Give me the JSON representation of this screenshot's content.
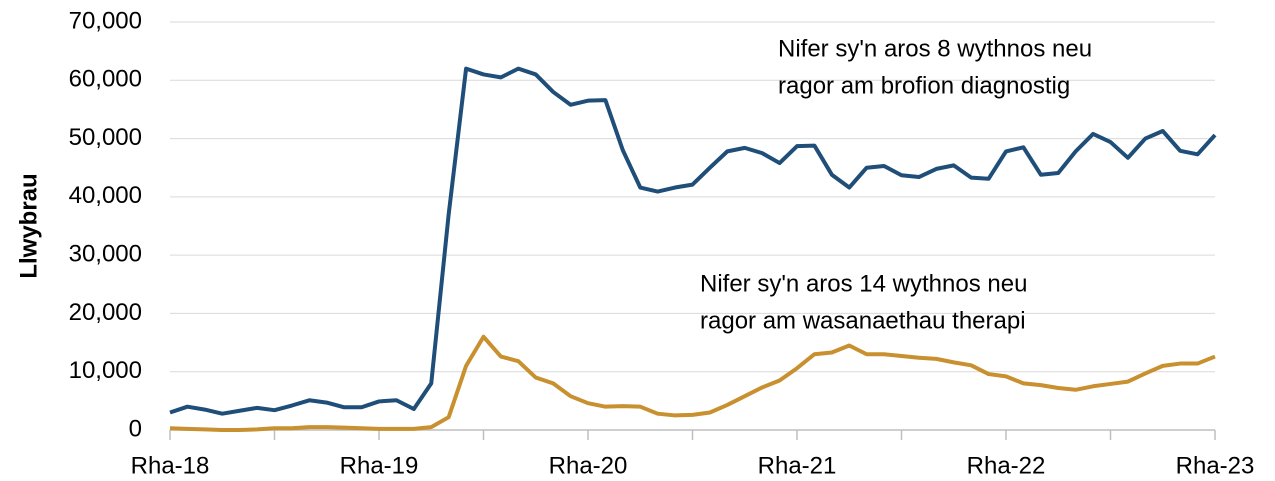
{
  "chart_data": {
    "type": "line",
    "y_label": "Llwybrau",
    "categories": [
      "Rha-18",
      null,
      null,
      null,
      null,
      null,
      null,
      null,
      null,
      null,
      null,
      null,
      "Rha-19",
      null,
      null,
      null,
      null,
      null,
      null,
      null,
      null,
      null,
      null,
      null,
      "Rha-20",
      null,
      null,
      null,
      null,
      null,
      null,
      null,
      null,
      null,
      null,
      null,
      "Rha-21",
      null,
      null,
      null,
      null,
      null,
      null,
      null,
      null,
      null,
      null,
      null,
      "Rha-22",
      null,
      null,
      null,
      null,
      null,
      null,
      null,
      null,
      null,
      null,
      null,
      "Rha-23"
    ],
    "series": [
      {
        "name": [
          "Nifer sy'n aros 8 wythnos neu",
          "ragor am brofion diagnostig"
        ],
        "color": "#1f4e79",
        "values": [
          3000,
          4000,
          3500,
          2800,
          3300,
          3800,
          3400,
          4200,
          5100,
          4700,
          3900,
          3900,
          4900,
          5100,
          3600,
          8000,
          37000,
          62000,
          61000,
          60500,
          62000,
          61000,
          58000,
          55800,
          56500,
          56600,
          48000,
          41600,
          40900,
          41600,
          42100,
          45000,
          47800,
          48400,
          47500,
          45800,
          48700,
          48800,
          43800,
          41600,
          45000,
          45300,
          43700,
          43400,
          44800,
          45400,
          43300,
          43100,
          47800,
          48500,
          43800,
          44100,
          47800,
          50800,
          49400,
          46700,
          50000,
          51300,
          47900,
          47300,
          50600
        ]
      },
      {
        "name": [
          "Nifer sy'n aros 14 wythnos neu",
          "ragor am wasanaethau therapi"
        ],
        "color": "#c8902f",
        "values": [
          300,
          200,
          100,
          0,
          0,
          100,
          300,
          300,
          500,
          500,
          400,
          300,
          200,
          200,
          200,
          500,
          2200,
          11000,
          16000,
          12600,
          11800,
          9000,
          8000,
          5800,
          4600,
          4000,
          4100,
          4000,
          2800,
          2500,
          2600,
          3000,
          4300,
          5800,
          7300,
          8500,
          10600,
          13000,
          13300,
          14500,
          13000,
          13000,
          12700,
          12400,
          12200,
          11600,
          11100,
          9600,
          9200,
          8000,
          7700,
          7200,
          6900,
          7500,
          7900,
          8300,
          9700,
          11000,
          11400,
          11400,
          12600
        ]
      }
    ],
    "ylim": [
      0,
      70000
    ],
    "yticks": [
      0,
      {
        "value": 10000,
        "label": "10,000"
      },
      {
        "value": 20000,
        "label": "20,000"
      },
      {
        "value": 30000,
        "label": "30,000"
      },
      {
        "value": 40000,
        "label": "40,000"
      },
      {
        "value": 50000,
        "label": "50,000"
      },
      {
        "value": 60000,
        "label": "60,000"
      },
      {
        "value": 70000,
        "label": "70,000"
      }
    ],
    "grid": true
  }
}
